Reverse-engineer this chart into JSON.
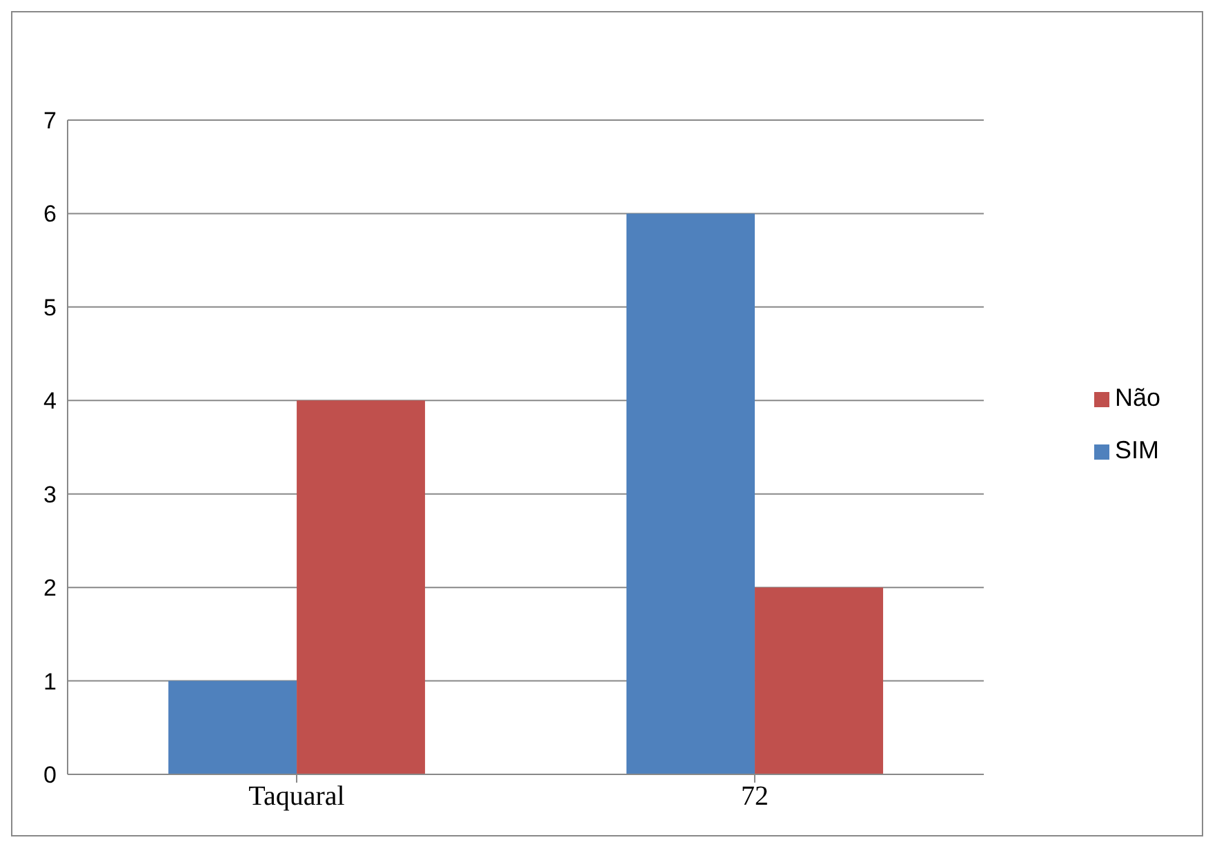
{
  "chart_data": {
    "type": "bar",
    "categories": [
      "Taquaral",
      "72"
    ],
    "series": [
      {
        "name": "SIM",
        "color": "#4f81bd",
        "values": [
          1,
          6
        ]
      },
      {
        "name": "Não",
        "color": "#c0504d",
        "values": [
          4,
          2
        ]
      }
    ],
    "ylim": [
      0,
      7
    ],
    "yticks": [
      0,
      1,
      2,
      3,
      4,
      5,
      6,
      7
    ],
    "grid": "y",
    "legend": "right"
  }
}
